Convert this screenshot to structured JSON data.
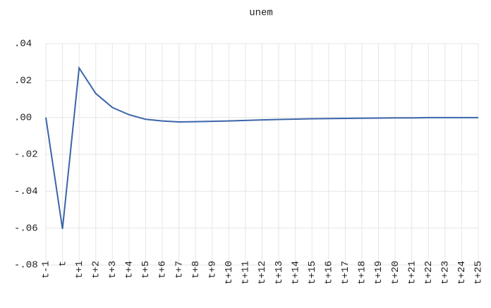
{
  "chart_data": {
    "type": "line",
    "title": "unem",
    "categories": [
      "t-1",
      "t",
      "t+1",
      "t+2",
      "t+3",
      "t+4",
      "t+5",
      "t+6",
      "t+7",
      "t+8",
      "t+9",
      "t+10",
      "t+11",
      "t+12",
      "t+13",
      "t+14",
      "t+15",
      "t+16",
      "t+17",
      "t+18",
      "t+19",
      "t+20",
      "t+21",
      "t+22",
      "t+23",
      "t+24",
      "t+25"
    ],
    "series": [
      {
        "name": "unem",
        "color": "#3b65a9",
        "values": [
          0,
          -0.0604,
          0.0268,
          0.013,
          0.0054,
          0.0015,
          -0.001,
          -0.0019,
          -0.0024,
          -0.0023,
          -0.0021,
          -0.0019,
          -0.0016,
          -0.0013,
          -0.0011,
          -0.0009,
          -0.0007,
          -0.0006,
          -0.0005,
          -0.0004,
          -0.0003,
          -0.0002,
          -0.0002,
          -0.0001,
          -0.0001,
          -0.0001,
          -0.0001
        ]
      }
    ],
    "ylim": [
      -0.08,
      0.04
    ],
    "yticks": [
      {
        "value": 0.04,
        "label": ".04"
      },
      {
        "value": 0.02,
        "label": ".02"
      },
      {
        "value": 0,
        "label": ".00"
      },
      {
        "value": -0.02,
        "label": "-.02"
      },
      {
        "value": -0.04,
        "label": "-.04"
      },
      {
        "value": -0.06,
        "label": "-.06"
      },
      {
        "value": -0.08,
        "label": "-.08"
      }
    ],
    "grid": true
  }
}
